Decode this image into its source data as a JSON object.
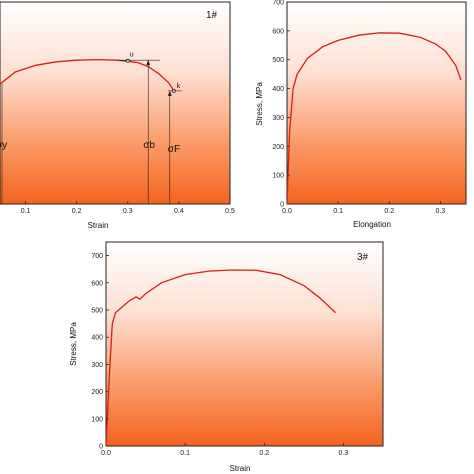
{
  "chart_data": [
    {
      "type": "line",
      "panel_label": "1#",
      "xlabel": "Strain",
      "ylabel": "",
      "xlim": [
        0.05,
        0.5
      ],
      "ylim": [
        0,
        750
      ],
      "xticks": [
        "0.1",
        "0.2",
        "0.3",
        "0.4",
        "0.5"
      ],
      "series": [
        {
          "x": [
            0.05,
            0.08,
            0.12,
            0.16,
            0.2,
            0.24,
            0.28,
            0.32,
            0.34,
            0.36,
            0.38,
            0.39
          ],
          "y": [
            445,
            490,
            515,
            528,
            534,
            536,
            534,
            525,
            510,
            485,
            450,
            420
          ]
        }
      ],
      "annotations": {
        "u": "u",
        "k": "k",
        "sigma_b": "σb",
        "sigma_F": "σF",
        "sigma_y_partial": "σy",
        "u_point": [
          0.3,
          532
        ],
        "k_point": [
          0.39,
          420
        ]
      },
      "plot_color": "#d61f16"
    },
    {
      "type": "line",
      "xlabel": "Elongation",
      "ylabel": "Stress, MPa",
      "xlim": [
        0,
        0.35
      ],
      "ylim": [
        0,
        700
      ],
      "xticks": [
        "0.0",
        "0.1",
        "0.2",
        "0.3"
      ],
      "yticks": [
        "0",
        "100",
        "200",
        "300",
        "400",
        "500",
        "600",
        "700"
      ],
      "series": [
        {
          "x": [
            0.0,
            0.005,
            0.012,
            0.02,
            0.04,
            0.07,
            0.1,
            0.14,
            0.18,
            0.22,
            0.26,
            0.29,
            0.31,
            0.33,
            0.34
          ],
          "y": [
            0,
            250,
            400,
            450,
            505,
            545,
            567,
            585,
            593,
            592,
            578,
            555,
            530,
            480,
            430
          ]
        }
      ],
      "plot_color": "#d61f16"
    },
    {
      "type": "line",
      "panel_label": "3#",
      "xlabel": "Strain",
      "ylabel": "Stress, MPa",
      "xlim": [
        0,
        0.35
      ],
      "ylim": [
        0,
        750
      ],
      "xticks": [
        "0.0",
        "0.1",
        "0.2",
        "0.3"
      ],
      "yticks": [
        "0",
        "100",
        "200",
        "300",
        "400",
        "500",
        "600",
        "700"
      ],
      "series": [
        {
          "x": [
            0.0,
            0.004,
            0.008,
            0.012,
            0.02,
            0.03,
            0.038,
            0.043,
            0.05,
            0.07,
            0.1,
            0.13,
            0.16,
            0.19,
            0.22,
            0.25,
            0.27,
            0.29
          ],
          "y": [
            0,
            250,
            450,
            490,
            510,
            535,
            548,
            540,
            560,
            600,
            630,
            643,
            647,
            646,
            630,
            590,
            545,
            490
          ]
        }
      ],
      "plot_color": "#d61f16"
    }
  ]
}
